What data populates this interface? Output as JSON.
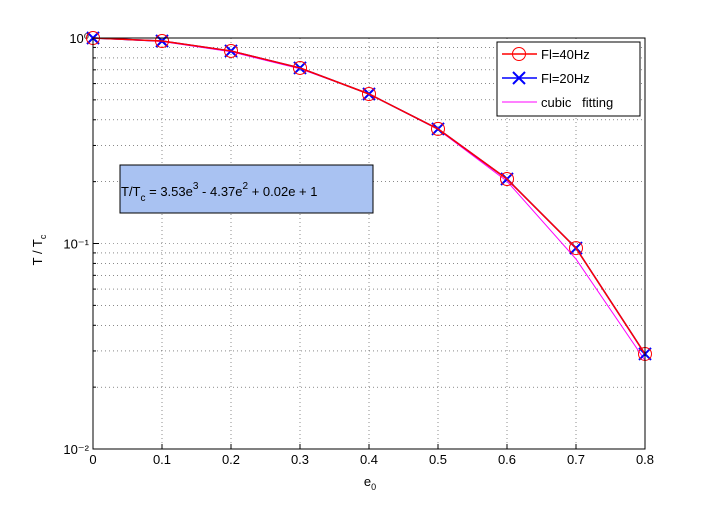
{
  "chart_data": {
    "type": "line",
    "x": [
      0,
      0.1,
      0.2,
      0.3,
      0.4,
      0.5,
      0.6,
      0.7,
      0.8
    ],
    "series": [
      {
        "name": "Fl=40Hz",
        "color": "#ff0000",
        "marker": "o",
        "values": [
          1.0,
          0.967,
          0.865,
          0.715,
          0.534,
          0.361,
          0.206,
          0.095,
          0.029
        ]
      },
      {
        "name": "Fl=20Hz",
        "color": "#0000ff",
        "marker": "x",
        "values": [
          1.0,
          0.967,
          0.865,
          0.715,
          0.534,
          0.361,
          0.206,
          0.095,
          0.029
        ]
      },
      {
        "name": "cubic   fitting",
        "color": "#ff00ff",
        "marker": null,
        "values": [
          1.0,
          0.962,
          0.857,
          0.708,
          0.535,
          0.359,
          0.201,
          0.084,
          0.027
        ]
      }
    ],
    "xlim": [
      0,
      0.8
    ],
    "xticks": [
      0,
      0.1,
      0.2,
      0.3,
      0.4,
      0.5,
      0.6,
      0.7,
      0.8
    ],
    "ylim": [
      0.01,
      1
    ],
    "yscale": "log",
    "yticks": [
      {
        "value": 0.01,
        "label": "10⁻²"
      },
      {
        "value": 0.1,
        "label": "10⁻¹"
      },
      {
        "value": 1,
        "label": "10⁰"
      }
    ],
    "yminorticks": [
      0.02,
      0.03,
      0.04,
      0.05,
      0.06,
      0.07,
      0.08,
      0.09,
      0.2,
      0.3,
      0.4,
      0.5,
      0.6,
      0.7,
      0.8,
      0.9
    ],
    "grid": true,
    "xlabel": [
      "e",
      "0"
    ],
    "ylabel": [
      "T / T",
      "c"
    ],
    "annotation": [
      "T/T",
      "c",
      " = 3.53e",
      "3",
      " - 4.37e",
      "2",
      " + 0.02e + 1"
    ],
    "legend": "northeast"
  }
}
